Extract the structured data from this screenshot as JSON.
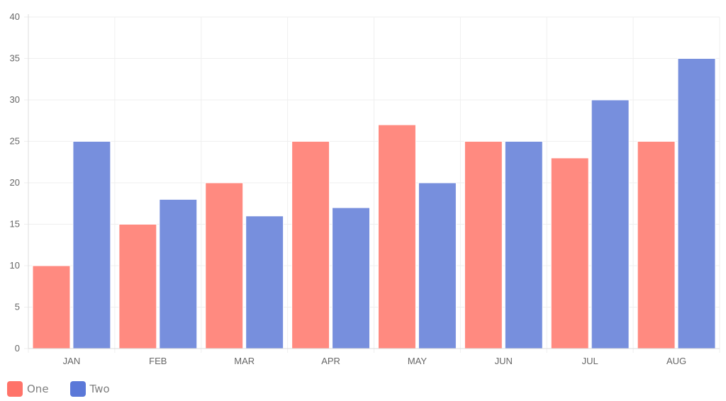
{
  "chart_data": {
    "type": "bar",
    "categories": [
      "JAN",
      "FEB",
      "MAR",
      "APR",
      "MAY",
      "JUN",
      "JUL",
      "AUG"
    ],
    "series": [
      {
        "name": "One",
        "values": [
          10,
          15,
          20,
          25,
          27,
          25,
          23,
          25
        ],
        "color": "#ff8a80",
        "legend_color": "#ff7369"
      },
      {
        "name": "Two",
        "values": [
          25,
          18,
          16,
          17,
          20,
          25,
          30,
          35
        ],
        "color": "#778fdd",
        "legend_color": "#5b78d8"
      }
    ],
    "ylim": [
      0,
      40
    ],
    "yticks": [
      "0",
      "5",
      "10",
      "15",
      "20",
      "25",
      "30",
      "35",
      "40"
    ],
    "grid": true,
    "legend_position": "bottom-left",
    "title": "",
    "xlabel": "",
    "ylabel": ""
  },
  "legend": {
    "items": [
      {
        "label": "One",
        "color": "#ff7369"
      },
      {
        "label": "Two",
        "color": "#5b78d8"
      }
    ]
  }
}
